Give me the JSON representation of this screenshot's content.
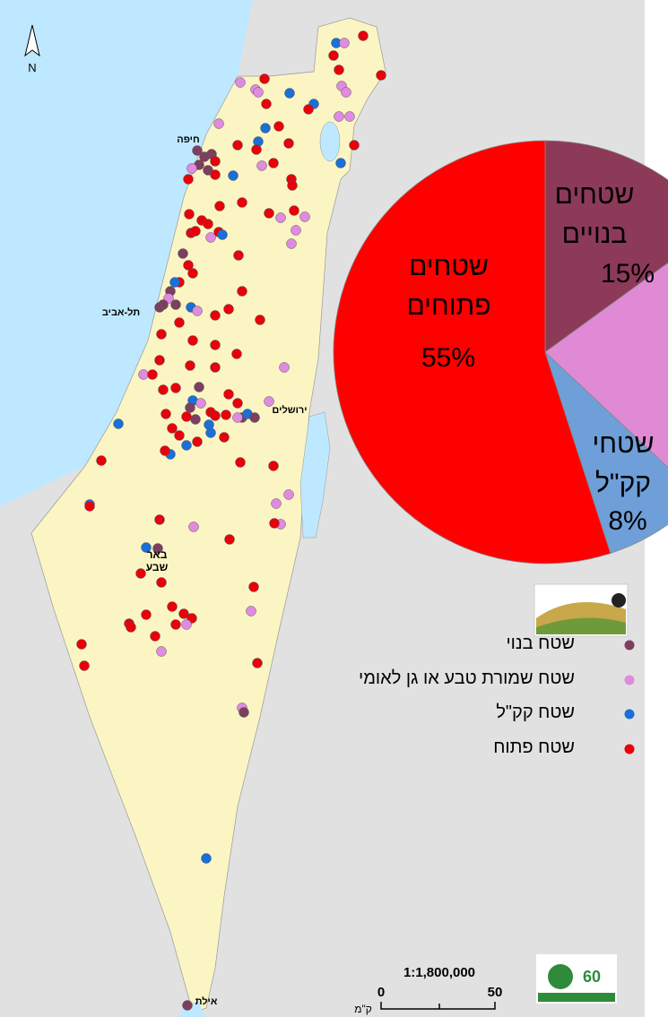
{
  "map": {
    "north": "N",
    "cities": [
      "חיפה",
      "תל-אביב",
      "ירושלים",
      "באר שבע",
      "אילת"
    ],
    "scale": {
      "ratio": "1:1,800,000",
      "start": "0",
      "end": "50",
      "unit": "ק\"מ"
    }
  },
  "legend": [
    {
      "label": "שטח בנוי",
      "color": "#7d3f5f"
    },
    {
      "label": "שטח שמורת טבע או גן לאומי",
      "color": "#e08ae0"
    },
    {
      "label": "שטח קק\"ל",
      "color": "#1a6fd8"
    },
    {
      "label": "שטח פתוח",
      "color": "#e8000b"
    }
  ],
  "chart_data": {
    "type": "pie",
    "categories": [
      "שטחים בנויים",
      null,
      "שטחי קק\"ל",
      "שטחים פתוחים"
    ],
    "values": [
      15,
      22,
      8,
      55
    ],
    "value_labels": [
      "15%",
      null,
      "8%",
      "55%"
    ],
    "colors": [
      "#8c3a58",
      "#e08ad6",
      "#6f9fd8",
      "#ff0000"
    ]
  }
}
